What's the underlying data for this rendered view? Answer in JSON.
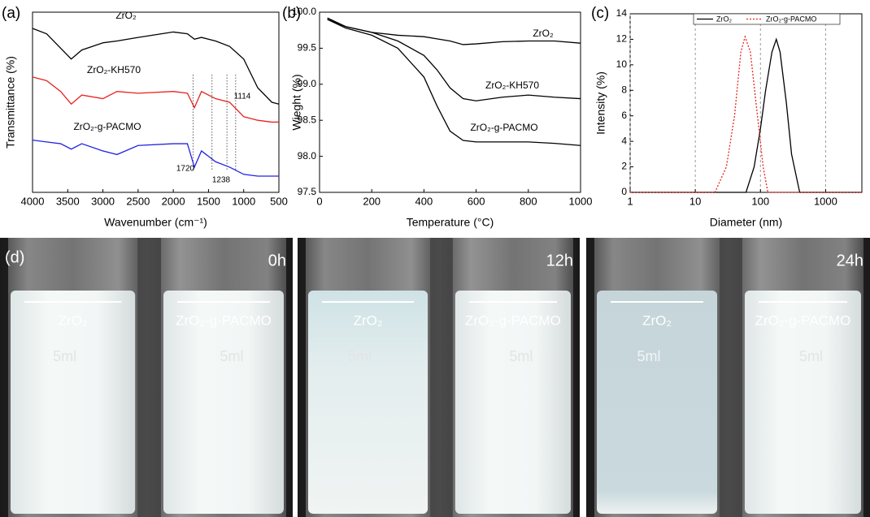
{
  "chart_data": [
    {
      "type": "line",
      "panel_label": "(a)",
      "x_label": "Wavenumber (cm⁻¹)",
      "y_label": "Transmittance (%)",
      "xlim": [
        4000,
        500
      ],
      "xticks": [
        4000,
        3500,
        3000,
        2500,
        2000,
        1500,
        1000,
        500
      ],
      "ylim": [
        0,
        100
      ],
      "x": [
        4000,
        3800,
        3600,
        3450,
        3300,
        3000,
        2800,
        2500,
        2000,
        1800,
        1700,
        1600,
        1400,
        1200,
        1000,
        800,
        600,
        500
      ],
      "legend": false,
      "series": [
        {
          "name": "ZrO₂",
          "color": "#000000",
          "values": [
            91,
            88,
            80,
            74,
            79,
            83,
            84,
            86,
            89,
            88,
            85,
            86,
            84,
            81,
            74,
            58,
            50,
            49
          ]
        },
        {
          "name": "ZrO₂-KH570",
          "color": "#e8231f",
          "values": [
            64,
            62,
            56,
            49,
            54,
            52,
            56,
            55,
            56,
            55,
            47,
            56,
            52,
            50,
            42,
            40,
            39,
            39
          ]
        },
        {
          "name": "ZrO₂-g-PACMO",
          "color": "#2323e0",
          "values": [
            29,
            28,
            27,
            24,
            27,
            23,
            21,
            26,
            27,
            27,
            14,
            23,
            17,
            14,
            10,
            9,
            9,
            9
          ]
        }
      ],
      "reference_lines": [
        1720,
        1450,
        1238,
        1114
      ],
      "annotations": [
        "1720",
        "1238",
        "1114"
      ]
    },
    {
      "type": "line",
      "panel_label": "(b)",
      "x_label": "Temperature (°C)",
      "y_label": "Wieght (%)",
      "xlim": [
        0,
        1000
      ],
      "xticks": [
        0,
        200,
        400,
        600,
        800,
        1000
      ],
      "ylim": [
        97.5,
        100
      ],
      "yticks": [
        97.5,
        {
          "value": 98,
          "label": "98.0"
        },
        98.5,
        {
          "value": 99,
          "label": "99.0"
        },
        99.5,
        {
          "value": 100,
          "label": "100.0"
        }
      ],
      "x": [
        30,
        100,
        200,
        300,
        400,
        450,
        500,
        550,
        600,
        700,
        800,
        900,
        1000
      ],
      "legend": false,
      "series": [
        {
          "name": "ZrO₂",
          "color": "#000000",
          "values": [
            99.92,
            99.8,
            99.72,
            99.68,
            99.66,
            99.63,
            99.6,
            99.55,
            99.56,
            99.59,
            99.6,
            99.6,
            99.57
          ]
        },
        {
          "name": "ZrO₂-KH570",
          "color": "#000000",
          "values": [
            99.9,
            99.8,
            99.72,
            99.6,
            99.4,
            99.2,
            98.95,
            98.8,
            98.77,
            98.82,
            98.85,
            98.82,
            98.8
          ]
        },
        {
          "name": "ZrO₂-g-PACMO",
          "color": "#000000",
          "values": [
            99.9,
            99.78,
            99.68,
            99.5,
            99.1,
            98.7,
            98.35,
            98.22,
            98.2,
            98.2,
            98.2,
            98.18,
            98.15
          ]
        }
      ]
    },
    {
      "type": "line",
      "panel_label": "(c)",
      "x_label": "Diameter (nm)",
      "y_label": "Intensity (%)",
      "xlog": true,
      "xlim": [
        1,
        3600
      ],
      "xticks": [
        1,
        10,
        100,
        1000
      ],
      "xgrid": true,
      "ylim": [
        0,
        14
      ],
      "yticks": [
        0,
        2,
        4,
        6,
        8,
        10,
        12,
        14
      ],
      "legend": true,
      "series": [
        {
          "name": "ZrO₂",
          "color": "#000000",
          "dash": false,
          "x": [
            1,
            60,
            80,
            100,
            120,
            150,
            175,
            200,
            250,
            300,
            400,
            3600
          ],
          "values": [
            0,
            0,
            2,
            5,
            8,
            11,
            12,
            11,
            7,
            3,
            0,
            0
          ]
        },
        {
          "name": "ZrO₂-g-PACMO",
          "color": "#e8231f",
          "dash": true,
          "x": [
            1,
            20,
            30,
            40,
            50,
            58,
            70,
            90,
            110,
            130,
            3600
          ],
          "values": [
            0,
            0,
            2,
            6,
            11,
            12.2,
            11,
            6,
            2,
            0,
            0
          ]
        }
      ]
    }
  ],
  "photos": {
    "panel_label": "(d)",
    "panels": [
      {
        "time": "0h",
        "left": "ZrO₂",
        "right": "ZrO₂-g-PACMO",
        "left_mark": "5ml",
        "right_mark": "5ml"
      },
      {
        "time": "12h",
        "left": "ZrO₂",
        "right": "ZrO₂-g-PACMO",
        "left_mark": "5ml",
        "right_mark": "5ml"
      },
      {
        "time": "24h",
        "left": "ZrO₂",
        "right": "ZrO₂-g-PACMO",
        "left_mark": "5ml",
        "right_mark": "5ml"
      }
    ]
  }
}
